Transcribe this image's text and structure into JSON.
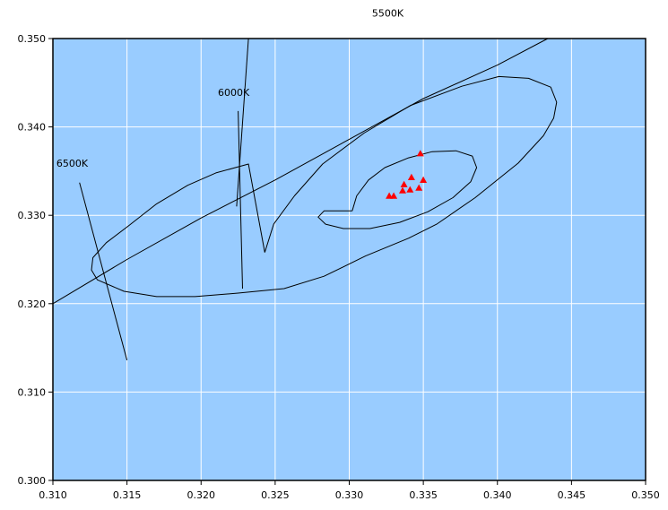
{
  "chart_data": {
    "type": "scatter",
    "title": "",
    "xlabel": "",
    "ylabel": "",
    "xlim": [
      0.31,
      0.35
    ],
    "ylim": [
      0.3,
      0.35
    ],
    "grid": true,
    "x_ticks": [
      "0.310",
      "0.315",
      "0.320",
      "0.325",
      "0.330",
      "0.335",
      "0.340",
      "0.345",
      "0.350"
    ],
    "y_ticks": [
      "0.300",
      "0.310",
      "0.320",
      "0.330",
      "0.340",
      "0.350"
    ],
    "colors": {
      "plot_background": "#99ccff",
      "gridline": "#ffffff",
      "markers": "#ff0000",
      "lines": "#000000"
    },
    "points": [
      {
        "x": 0.3327,
        "y": 0.3322
      },
      {
        "x": 0.333,
        "y": 0.3322
      },
      {
        "x": 0.3336,
        "y": 0.3328
      },
      {
        "x": 0.3337,
        "y": 0.3335
      },
      {
        "x": 0.3341,
        "y": 0.3329
      },
      {
        "x": 0.3342,
        "y": 0.3343
      },
      {
        "x": 0.3347,
        "y": 0.3331
      },
      {
        "x": 0.335,
        "y": 0.334
      },
      {
        "x": 0.3348,
        "y": 0.337
      }
    ],
    "lines": [
      {
        "points": [
          [
            0.31,
            0.32
          ],
          [
            0.315,
            0.325
          ],
          [
            0.32,
            0.3297
          ],
          [
            0.325,
            0.334
          ],
          [
            0.33,
            0.3386
          ],
          [
            0.335,
            0.3432
          ],
          [
            0.34,
            0.347
          ],
          [
            0.3434,
            0.35
          ]
        ]
      },
      {
        "points": [
          [
            0.3232,
            0.35
          ],
          [
            0.3224,
            0.331
          ]
        ]
      },
      {
        "points": [
          [
            0.3225,
            0.3418
          ],
          [
            0.3228,
            0.3217
          ]
        ]
      },
      {
        "points": [
          [
            0.3118,
            0.3337
          ],
          [
            0.315,
            0.3136
          ]
        ]
      },
      {
        "points": [
          [
            0.3243,
            0.3258
          ],
          [
            0.3249,
            0.329
          ],
          [
            0.3263,
            0.3322
          ],
          [
            0.3282,
            0.3358
          ],
          [
            0.331,
            0.3393
          ],
          [
            0.3341,
            0.3424
          ],
          [
            0.3376,
            0.3446
          ],
          [
            0.3401,
            0.3457
          ],
          [
            0.3421,
            0.3455
          ],
          [
            0.3436,
            0.3445
          ],
          [
            0.344,
            0.3428
          ],
          [
            0.3438,
            0.341
          ],
          [
            0.3431,
            0.339
          ],
          [
            0.3414,
            0.3359
          ],
          [
            0.3385,
            0.332
          ],
          [
            0.3359,
            0.329
          ],
          [
            0.334,
            0.3274
          ],
          [
            0.3311,
            0.3254
          ],
          [
            0.3283,
            0.3231
          ],
          [
            0.3256,
            0.3217
          ],
          [
            0.3225,
            0.3212
          ],
          [
            0.3196,
            0.3208
          ],
          [
            0.317,
            0.3208
          ],
          [
            0.3148,
            0.3214
          ],
          [
            0.313,
            0.3227
          ],
          [
            0.3126,
            0.3238
          ],
          [
            0.3127,
            0.3252
          ],
          [
            0.3136,
            0.3269
          ],
          [
            0.3151,
            0.3288
          ],
          [
            0.317,
            0.3313
          ],
          [
            0.3191,
            0.3334
          ],
          [
            0.321,
            0.3348
          ],
          [
            0.3232,
            0.3358
          ],
          [
            0.3243,
            0.3258
          ]
        ]
      },
      {
        "points": [
          [
            0.3302,
            0.3305
          ],
          [
            0.3305,
            0.3322
          ],
          [
            0.3313,
            0.334
          ],
          [
            0.3324,
            0.3354
          ],
          [
            0.334,
            0.3365
          ],
          [
            0.3356,
            0.3372
          ],
          [
            0.3372,
            0.3373
          ],
          [
            0.3383,
            0.3367
          ],
          [
            0.3386,
            0.3354
          ],
          [
            0.3382,
            0.3338
          ],
          [
            0.337,
            0.332
          ],
          [
            0.3353,
            0.3304
          ],
          [
            0.3334,
            0.3292
          ],
          [
            0.3314,
            0.3285
          ],
          [
            0.3296,
            0.3285
          ],
          [
            0.3284,
            0.329
          ],
          [
            0.3279,
            0.3298
          ],
          [
            0.3283,
            0.3305
          ],
          [
            0.3302,
            0.3305
          ]
        ]
      }
    ],
    "annotations": [
      {
        "text": "5500K",
        "x": 0.3326,
        "y": 0.3525
      },
      {
        "text": "6000K",
        "x": 0.3222,
        "y": 0.3435
      },
      {
        "text": "6500K",
        "x": 0.3113,
        "y": 0.3355
      }
    ]
  }
}
